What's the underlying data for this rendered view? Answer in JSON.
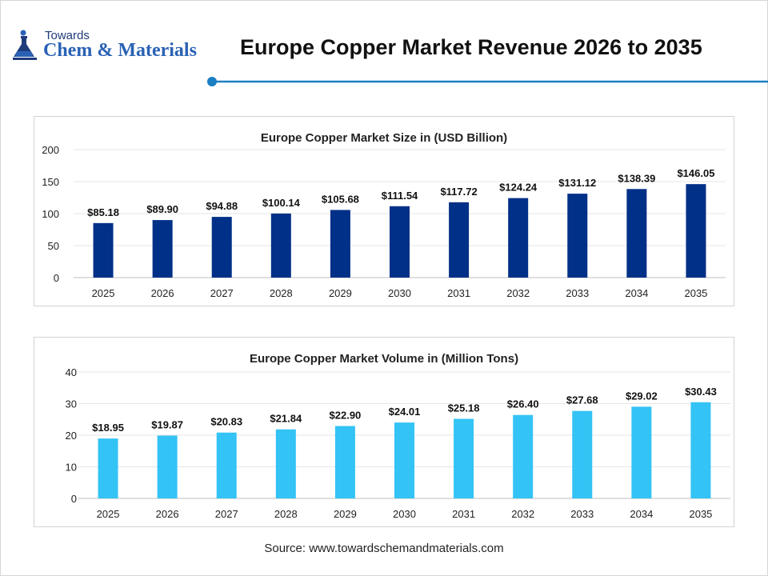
{
  "logo": {
    "top_text": "Towards",
    "bottom_text": "Chem & Materials"
  },
  "header": {
    "title": "Europe Copper Market Revenue 2026 to 2035"
  },
  "colors": {
    "accent": "#1a7fc4",
    "market_size_bar": "#003087",
    "market_volume_bar": "#33c3f5"
  },
  "chart_data": [
    {
      "type": "bar",
      "title": "Europe Copper Market Size in (USD Billion)",
      "categories": [
        "2025",
        "2026",
        "2027",
        "2028",
        "2029",
        "2030",
        "2031",
        "2032",
        "2033",
        "2034",
        "2035"
      ],
      "values": [
        85.18,
        89.9,
        94.88,
        100.14,
        105.68,
        111.54,
        117.72,
        124.24,
        131.12,
        138.39,
        146.05
      ],
      "data_labels": [
        "$85.18",
        "$89.90",
        "$94.88",
        "$100.14",
        "$105.68",
        "$111.54",
        "$117.72",
        "$124.24",
        "$131.12",
        "$138.39",
        "$146.05"
      ],
      "yticks": [
        0,
        50,
        100,
        150,
        200
      ],
      "ylim": [
        0,
        200
      ],
      "grid": true,
      "legend": "none",
      "color": "#003087"
    },
    {
      "type": "bar",
      "title": "Europe Copper Market Volume in (Million Tons)",
      "categories": [
        "2025",
        "2026",
        "2027",
        "2028",
        "2029",
        "2030",
        "2031",
        "2032",
        "2033",
        "2034",
        "2035"
      ],
      "values": [
        18.95,
        19.87,
        20.83,
        21.84,
        22.9,
        24.01,
        25.18,
        26.4,
        27.68,
        29.02,
        30.43
      ],
      "data_labels": [
        "$18.95",
        "$19.87",
        "$20.83",
        "$21.84",
        "$22.90",
        "$24.01",
        "$25.18",
        "$26.40",
        "$27.68",
        "$29.02",
        "$30.43"
      ],
      "yticks": [
        0,
        10,
        20,
        30,
        40
      ],
      "ylim": [
        0,
        40
      ],
      "grid": true,
      "legend": "none",
      "color": "#33c3f5"
    }
  ],
  "footer": {
    "source": "Source: www.towardschemandmaterials.com"
  }
}
